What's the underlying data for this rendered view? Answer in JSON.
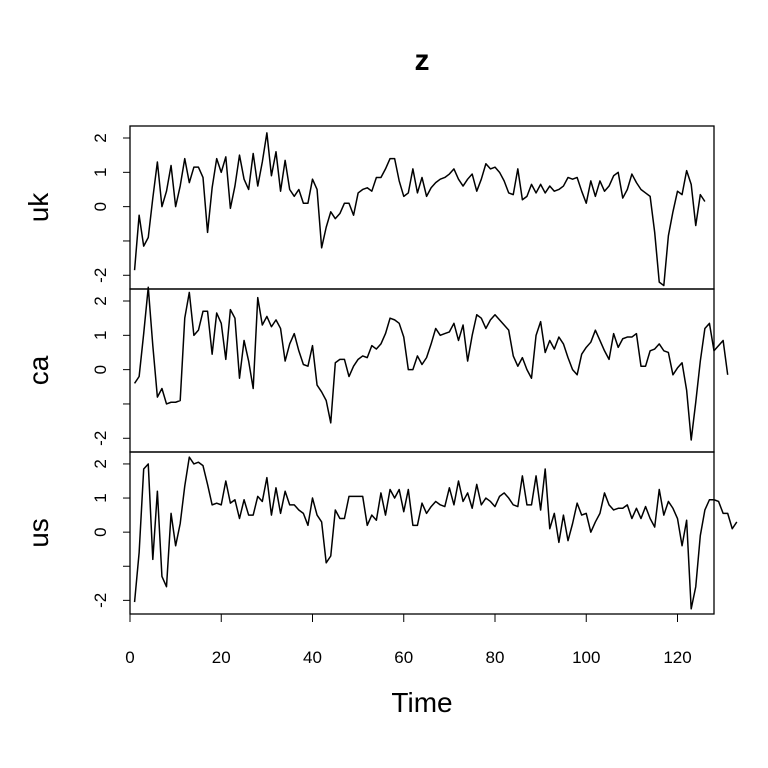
{
  "chart_data": {
    "type": "line",
    "title": "z",
    "xlabel": "Time",
    "xlim": [
      0,
      128
    ],
    "x_ticks": [
      0,
      20,
      40,
      60,
      80,
      100,
      120
    ],
    "x_start": 1,
    "grid": false,
    "legend": "none",
    "panels": [
      {
        "name": "uk",
        "ylim": [
          -2.4,
          2.35
        ],
        "y_ticks": [
          -2,
          -1,
          0,
          1,
          2
        ],
        "y_tick_labels": [
          "-2",
          "",
          "0",
          "1",
          "2"
        ],
        "values": [
          -1.85,
          -0.25,
          -1.15,
          -0.9,
          0.25,
          1.3,
          0.0,
          0.45,
          1.2,
          0.0,
          0.6,
          1.4,
          0.7,
          1.15,
          1.15,
          0.85,
          -0.75,
          0.55,
          1.4,
          1.0,
          1.45,
          -0.05,
          0.6,
          1.5,
          0.8,
          0.5,
          1.55,
          0.6,
          1.3,
          2.15,
          0.9,
          1.6,
          0.45,
          1.35,
          0.5,
          0.3,
          0.5,
          0.1,
          0.1,
          0.8,
          0.5,
          -1.2,
          -0.6,
          -0.15,
          -0.35,
          -0.2,
          0.1,
          0.1,
          -0.25,
          0.4,
          0.5,
          0.55,
          0.45,
          0.85,
          0.85,
          1.1,
          1.4,
          1.4,
          0.75,
          0.3,
          0.4,
          1.1,
          0.4,
          0.85,
          0.3,
          0.55,
          0.7,
          0.8,
          0.85,
          0.95,
          1.1,
          0.8,
          0.6,
          0.8,
          0.95,
          0.45,
          0.8,
          1.25,
          1.1,
          1.15,
          1.0,
          0.75,
          0.4,
          0.35,
          1.1,
          0.2,
          0.3,
          0.65,
          0.4,
          0.65,
          0.4,
          0.6,
          0.45,
          0.5,
          0.6,
          0.85,
          0.8,
          0.85,
          0.45,
          0.1,
          0.75,
          0.3,
          0.75,
          0.45,
          0.6,
          0.9,
          1.0,
          0.25,
          0.5,
          0.95,
          0.7,
          0.5,
          0.4,
          0.3,
          -0.75,
          -2.2,
          -2.3,
          -0.85,
          -0.15,
          0.45,
          0.35,
          1.05,
          0.65,
          -0.55,
          0.35,
          0.15
        ]
      },
      {
        "name": "ca",
        "ylim": [
          -2.4,
          2.35
        ],
        "y_ticks": [
          -2,
          -1,
          0,
          1,
          2
        ],
        "y_tick_labels": [
          "-2",
          "",
          "0",
          "1",
          "2"
        ],
        "values": [
          -0.4,
          -0.2,
          1.05,
          2.4,
          0.7,
          -0.8,
          -0.55,
          -1.0,
          -0.95,
          -0.95,
          -0.9,
          1.5,
          2.25,
          1.0,
          1.15,
          1.7,
          1.7,
          0.45,
          1.65,
          1.35,
          0.3,
          1.75,
          1.5,
          -0.25,
          0.85,
          0.25,
          -0.55,
          2.1,
          1.3,
          1.55,
          1.25,
          1.45,
          1.2,
          0.25,
          0.75,
          1.05,
          0.55,
          0.15,
          0.1,
          0.7,
          -0.45,
          -0.65,
          -0.9,
          -1.55,
          0.2,
          0.3,
          0.3,
          -0.2,
          0.1,
          0.3,
          0.4,
          0.35,
          0.7,
          0.6,
          0.75,
          1.05,
          1.5,
          1.45,
          1.35,
          0.95,
          0.0,
          0.0,
          0.4,
          0.15,
          0.35,
          0.75,
          1.2,
          1.0,
          1.05,
          1.1,
          1.35,
          0.85,
          1.3,
          0.25,
          1.0,
          1.6,
          1.5,
          1.2,
          1.45,
          1.6,
          1.45,
          1.3,
          1.15,
          0.4,
          0.1,
          0.35,
          0.0,
          -0.25,
          1.0,
          1.4,
          0.5,
          0.85,
          0.6,
          0.95,
          0.75,
          0.35,
          0.0,
          -0.15,
          0.45,
          0.65,
          0.8,
          1.15,
          0.85,
          0.55,
          0.3,
          1.05,
          0.65,
          0.9,
          0.95,
          0.95,
          1.05,
          0.1,
          0.1,
          0.55,
          0.6,
          0.75,
          0.55,
          0.5,
          -0.15,
          0.05,
          0.2,
          -0.6,
          -2.05,
          -0.95,
          0.25,
          1.2,
          1.35,
          0.55,
          0.7,
          0.85,
          -0.15
        ]
      },
      {
        "name": "us",
        "ylim": [
          -2.4,
          2.35
        ],
        "y_ticks": [
          -2,
          -1,
          0,
          1,
          2
        ],
        "y_tick_labels": [
          "-2",
          "",
          "0",
          "1",
          "2"
        ],
        "values": [
          -2.05,
          -0.6,
          1.85,
          2.0,
          -0.8,
          1.2,
          -1.3,
          -1.6,
          0.55,
          -0.4,
          0.25,
          1.35,
          2.2,
          2.0,
          2.05,
          1.95,
          1.4,
          0.8,
          0.85,
          0.8,
          1.5,
          0.85,
          0.95,
          0.4,
          0.95,
          0.5,
          0.5,
          1.05,
          0.9,
          1.6,
          0.5,
          1.3,
          0.55,
          1.2,
          0.8,
          0.8,
          0.65,
          0.55,
          0.2,
          1.0,
          0.5,
          0.3,
          -0.9,
          -0.7,
          0.65,
          0.4,
          0.4,
          1.05,
          1.05,
          1.05,
          1.05,
          0.2,
          0.5,
          0.35,
          1.15,
          0.5,
          1.25,
          1.0,
          1.25,
          0.6,
          1.25,
          0.2,
          0.2,
          0.85,
          0.55,
          0.75,
          0.9,
          0.8,
          0.75,
          1.3,
          0.8,
          1.5,
          0.9,
          1.15,
          0.7,
          1.4,
          0.8,
          1.0,
          0.9,
          0.75,
          1.05,
          1.15,
          1.0,
          0.8,
          0.75,
          1.65,
          0.8,
          0.8,
          1.65,
          0.65,
          1.85,
          0.1,
          0.55,
          -0.3,
          0.5,
          -0.25,
          0.25,
          0.85,
          0.5,
          0.55,
          0.0,
          0.3,
          0.55,
          1.15,
          0.8,
          0.65,
          0.7,
          0.7,
          0.8,
          0.4,
          0.7,
          0.4,
          0.75,
          0.4,
          0.15,
          1.25,
          0.5,
          0.9,
          0.7,
          0.4,
          -0.4,
          0.35,
          -2.25,
          -1.6,
          -0.1,
          0.65,
          0.95,
          0.95,
          0.9,
          0.55,
          0.55,
          0.1,
          0.3
        ]
      }
    ]
  }
}
